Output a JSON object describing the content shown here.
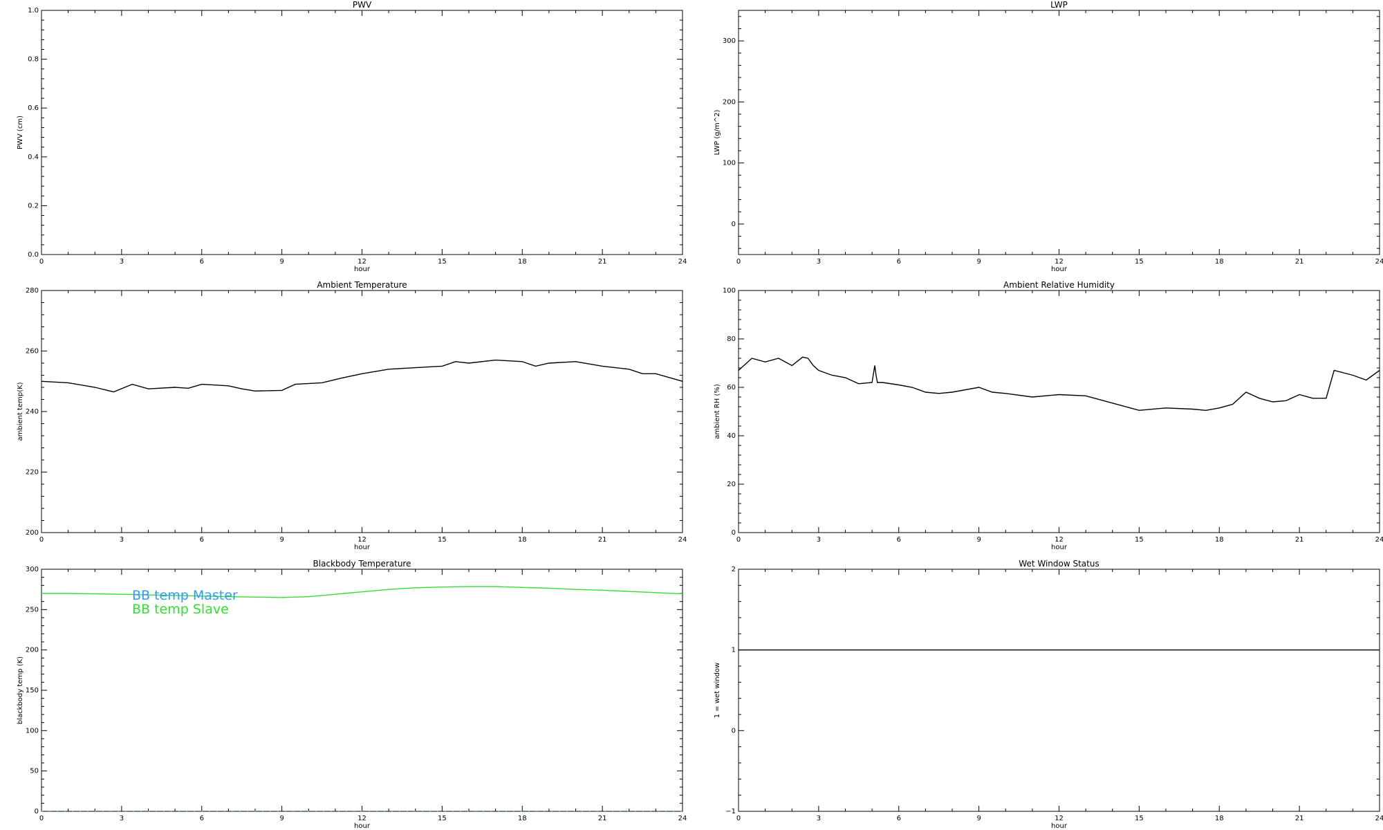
{
  "chart_data": [
    {
      "id": "pwv",
      "type": "line",
      "title": "PWV",
      "xlabel": "hour",
      "ylabel": "PWV (cm)",
      "xlim": [
        0,
        24
      ],
      "ylim": [
        0,
        1
      ],
      "xticks": [
        0,
        3,
        6,
        9,
        12,
        15,
        18,
        21,
        24
      ],
      "xtick_labels": [
        "0",
        "3",
        "6",
        "9",
        "12",
        "15",
        "18",
        "21",
        "24"
      ],
      "yticks": [
        0,
        0.2,
        0.4,
        0.6,
        0.8,
        1.0
      ],
      "ytick_labels": [
        "0.0",
        "0.2",
        "0.4",
        "0.6",
        "0.8",
        "1.0"
      ],
      "grid": false,
      "series": []
    },
    {
      "id": "lwp",
      "type": "line",
      "title": "LWP",
      "xlabel": "hour",
      "ylabel": "LWP (g/m^2)",
      "xlim": [
        0,
        24
      ],
      "ylim": [
        -50,
        350
      ],
      "xticks": [
        0,
        3,
        6,
        9,
        12,
        15,
        18,
        21,
        24
      ],
      "xtick_labels": [
        "0",
        "3",
        "6",
        "9",
        "12",
        "15",
        "18",
        "21",
        "24"
      ],
      "yticks": [
        0,
        100,
        200,
        300
      ],
      "ytick_labels": [
        "0",
        "100",
        "200",
        "300"
      ],
      "grid": false,
      "series": []
    },
    {
      "id": "ambient-temp",
      "type": "line",
      "title": "Ambient Temperature",
      "xlabel": "hour",
      "ylabel": "ambient temp(K)",
      "xlim": [
        0,
        24
      ],
      "ylim": [
        200,
        280
      ],
      "xticks": [
        0,
        3,
        6,
        9,
        12,
        15,
        18,
        21,
        24
      ],
      "xtick_labels": [
        "0",
        "3",
        "6",
        "9",
        "12",
        "15",
        "18",
        "21",
        "24"
      ],
      "yticks": [
        200,
        220,
        240,
        260,
        280
      ],
      "ytick_labels": [
        "200",
        "220",
        "240",
        "260",
        "280"
      ],
      "grid": false,
      "series": [
        {
          "color": "#000000",
          "x": [
            0,
            1,
            2,
            2.7,
            3.4,
            4,
            5,
            5.5,
            6,
            7,
            7.5,
            8,
            9,
            9.5,
            10.5,
            11.2,
            12,
            13,
            14,
            15,
            15.5,
            16,
            17,
            18,
            18.5,
            19,
            20,
            21,
            22,
            22.5,
            23,
            24
          ],
          "y": [
            250,
            249.5,
            248,
            246.5,
            249,
            247.5,
            248,
            247.7,
            249,
            248.5,
            247.5,
            246.8,
            247,
            249,
            249.5,
            251,
            252.5,
            254,
            254.5,
            255,
            256.5,
            256,
            257,
            256.5,
            255,
            256,
            256.5,
            255,
            254,
            252.5,
            252.5,
            250
          ]
        }
      ]
    },
    {
      "id": "ambient-rh",
      "type": "line",
      "title": "Ambient Relative Humidity",
      "xlabel": "hour",
      "ylabel": "ambient RH (%)",
      "xlim": [
        0,
        24
      ],
      "ylim": [
        0,
        100
      ],
      "xticks": [
        0,
        3,
        6,
        9,
        12,
        15,
        18,
        21,
        24
      ],
      "xtick_labels": [
        "0",
        "3",
        "6",
        "9",
        "12",
        "15",
        "18",
        "21",
        "24"
      ],
      "yticks": [
        0,
        20,
        40,
        60,
        80,
        100
      ],
      "ytick_labels": [
        "0",
        "20",
        "40",
        "60",
        "80",
        "100"
      ],
      "grid": false,
      "series": [
        {
          "color": "#000000",
          "x": [
            0,
            0.3,
            0.5,
            1,
            1.5,
            2,
            2.4,
            2.6,
            2.8,
            3,
            3.5,
            4,
            4.5,
            5,
            5.1,
            5.15,
            5.2,
            5.4,
            6,
            6.5,
            7,
            7.5,
            8,
            8.5,
            9,
            9.5,
            10,
            11,
            12,
            13,
            14,
            15,
            16,
            17,
            17.5,
            18,
            18.5,
            19,
            19.5,
            20,
            20.5,
            21,
            21.5,
            22,
            22.3,
            23,
            23.5,
            24
          ],
          "y": [
            67,
            70,
            72,
            70.5,
            72,
            69,
            72.5,
            72,
            69,
            67,
            65,
            64,
            61.5,
            62,
            69,
            65,
            62,
            62,
            61,
            60,
            58,
            57.5,
            58,
            59,
            60,
            58,
            57.5,
            56,
            57,
            56.5,
            53.5,
            50.5,
            51.5,
            51,
            50.5,
            51.5,
            53,
            58,
            55.5,
            54,
            54.5,
            57,
            55.5,
            55.5,
            67,
            65,
            63,
            67
          ]
        }
      ]
    },
    {
      "id": "bb-temp",
      "type": "line",
      "title": "Blackbody Temperature",
      "xlabel": "hour",
      "ylabel": "blackbody temp (K)",
      "xlim": [
        0,
        24
      ],
      "ylim": [
        0,
        300
      ],
      "xticks": [
        0,
        3,
        6,
        9,
        12,
        15,
        18,
        21,
        24
      ],
      "xtick_labels": [
        "0",
        "3",
        "6",
        "9",
        "12",
        "15",
        "18",
        "21",
        "24"
      ],
      "yticks": [
        0,
        50,
        100,
        150,
        200,
        250,
        300
      ],
      "ytick_labels": [
        "0",
        "50",
        "100",
        "150",
        "200",
        "250",
        "300"
      ],
      "grid": false,
      "legend_position": "top-left",
      "series": [
        {
          "name": "BB temp Master",
          "color": "#3399ff",
          "style": "dotted",
          "x": [
            0,
            24
          ],
          "y": [
            0,
            0
          ]
        },
        {
          "name": "BB temp Slave",
          "color": "#33dd33",
          "style": "solid",
          "x": [
            0,
            1,
            3,
            5,
            7,
            9,
            10,
            11,
            12,
            13,
            14,
            15,
            16,
            17,
            18,
            19,
            20,
            21,
            22,
            23,
            24
          ],
          "y": [
            270,
            270,
            269,
            267.5,
            266,
            265,
            266,
            269,
            272,
            275,
            277,
            278,
            278.5,
            278.5,
            277.5,
            276.5,
            275,
            274,
            272.5,
            271,
            269.5
          ]
        }
      ]
    },
    {
      "id": "wet-window",
      "type": "line",
      "title": "Wet Window Status",
      "xlabel": "hour",
      "ylabel": "1 = wet window",
      "xlim": [
        0,
        24
      ],
      "ylim": [
        -1,
        2
      ],
      "xticks": [
        0,
        3,
        6,
        9,
        12,
        15,
        18,
        21,
        24
      ],
      "xtick_labels": [
        "0",
        "3",
        "6",
        "9",
        "12",
        "15",
        "18",
        "21",
        "24"
      ],
      "yticks": [
        -1,
        0,
        1,
        2
      ],
      "ytick_labels": [
        "−1",
        "0",
        "1",
        "2"
      ],
      "grid": false,
      "series": [
        {
          "color": "#000000",
          "x": [
            0,
            24
          ],
          "y": [
            1,
            1
          ]
        }
      ]
    }
  ]
}
